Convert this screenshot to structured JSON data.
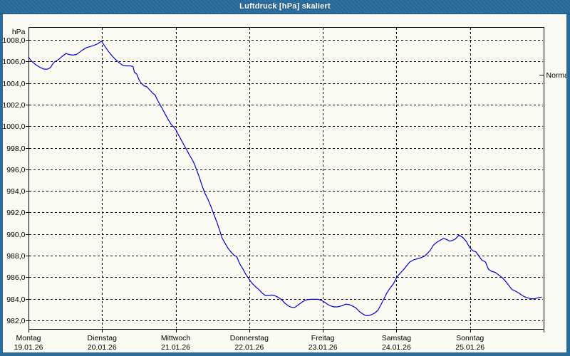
{
  "window": {
    "title": "Luftdruck [hPa] skaliert"
  },
  "colors": {
    "titlebar": "#2a6d9d",
    "window_border": "#2a6d9d",
    "plot_background": "#fbfbf3",
    "line": "#0000cc",
    "grid": "#000000",
    "text": "#000000"
  },
  "chart_data": {
    "type": "line",
    "title": "Luftdruck [hPa] skaliert",
    "y_unit_label": "hPa",
    "ylim": [
      981.2,
      1009.2
    ],
    "x_range": [
      0,
      7
    ],
    "grid": "dashed",
    "legend_position": "none",
    "yticks": {
      "values": [
        1008,
        1006,
        1004,
        1002,
        1000,
        998,
        996,
        994,
        992,
        990,
        988,
        986,
        984,
        982
      ],
      "labels": [
        "1008,0",
        "1006,0",
        "1004,0",
        "1002,0",
        "1000,0",
        "998,0",
        "996,0",
        "994,0",
        "992,0",
        "990,0",
        "988,0",
        "986,0",
        "984,0",
        "982,0"
      ]
    },
    "days": [
      {
        "name": "Montag",
        "date": "19.01.26"
      },
      {
        "name": "Dienstag",
        "date": "20.01.26"
      },
      {
        "name": "Mittwoch",
        "date": "21.01.26"
      },
      {
        "name": "Donnerstag",
        "date": "22.01.26"
      },
      {
        "name": "Freitag",
        "date": "23.01.26"
      },
      {
        "name": "Samstag",
        "date": "24.01.26"
      },
      {
        "name": "Sonntag",
        "date": "25.01.26"
      }
    ],
    "normal_marker": {
      "label": "Normal",
      "value": 1004.8
    },
    "series": [
      {
        "name": "Luftdruck",
        "color": "#0000cc",
        "points": [
          [
            0.0,
            1006.4
          ],
          [
            0.04,
            1006.05
          ],
          [
            0.1,
            1005.7
          ],
          [
            0.16,
            1005.45
          ],
          [
            0.21,
            1005.3
          ],
          [
            0.26,
            1005.3
          ],
          [
            0.3,
            1005.45
          ],
          [
            0.33,
            1005.8
          ],
          [
            0.36,
            1006.0
          ],
          [
            0.41,
            1006.2
          ],
          [
            0.46,
            1006.5
          ],
          [
            0.51,
            1006.75
          ],
          [
            0.55,
            1006.65
          ],
          [
            0.6,
            1006.6
          ],
          [
            0.65,
            1006.65
          ],
          [
            0.7,
            1006.9
          ],
          [
            0.74,
            1007.1
          ],
          [
            0.79,
            1007.3
          ],
          [
            0.84,
            1007.4
          ],
          [
            0.89,
            1007.5
          ],
          [
            0.94,
            1007.65
          ],
          [
            0.99,
            1007.9
          ],
          [
            1.04,
            1007.4
          ],
          [
            1.09,
            1006.9
          ],
          [
            1.14,
            1006.5
          ],
          [
            1.19,
            1006.15
          ],
          [
            1.24,
            1005.85
          ],
          [
            1.28,
            1005.65
          ],
          [
            1.33,
            1005.6
          ],
          [
            1.38,
            1005.6
          ],
          [
            1.42,
            1005.55
          ],
          [
            1.44,
            1005.0
          ],
          [
            1.47,
            1004.85
          ],
          [
            1.5,
            1004.35
          ],
          [
            1.53,
            1004.0
          ],
          [
            1.57,
            1003.75
          ],
          [
            1.61,
            1003.65
          ],
          [
            1.65,
            1003.35
          ],
          [
            1.69,
            1003.05
          ],
          [
            1.72,
            1002.9
          ],
          [
            1.75,
            1002.45
          ],
          [
            1.78,
            1002.1
          ],
          [
            1.82,
            1001.6
          ],
          [
            1.86,
            1001.1
          ],
          [
            1.9,
            1000.6
          ],
          [
            1.94,
            1000.15
          ],
          [
            1.97,
            999.95
          ],
          [
            2.0,
            999.7
          ],
          [
            2.03,
            999.3
          ],
          [
            2.07,
            998.8
          ],
          [
            2.11,
            998.3
          ],
          [
            2.15,
            997.8
          ],
          [
            2.19,
            997.3
          ],
          [
            2.23,
            996.85
          ],
          [
            2.26,
            996.4
          ],
          [
            2.29,
            995.85
          ],
          [
            2.32,
            995.3
          ],
          [
            2.36,
            994.45
          ],
          [
            2.4,
            993.75
          ],
          [
            2.44,
            993.2
          ],
          [
            2.48,
            992.55
          ],
          [
            2.52,
            991.8
          ],
          [
            2.56,
            991.1
          ],
          [
            2.6,
            990.3
          ],
          [
            2.63,
            989.65
          ],
          [
            2.67,
            989.15
          ],
          [
            2.71,
            988.7
          ],
          [
            2.75,
            988.35
          ],
          [
            2.79,
            988.05
          ],
          [
            2.83,
            987.9
          ],
          [
            2.87,
            987.25
          ],
          [
            2.91,
            986.8
          ],
          [
            2.95,
            986.3
          ],
          [
            2.99,
            985.9
          ],
          [
            3.03,
            985.5
          ],
          [
            3.08,
            985.15
          ],
          [
            3.13,
            984.85
          ],
          [
            3.18,
            984.5
          ],
          [
            3.22,
            984.3
          ],
          [
            3.27,
            984.3
          ],
          [
            3.3,
            984.35
          ],
          [
            3.34,
            984.3
          ],
          [
            3.39,
            984.15
          ],
          [
            3.44,
            983.9
          ],
          [
            3.49,
            983.55
          ],
          [
            3.54,
            983.3
          ],
          [
            3.58,
            983.2
          ],
          [
            3.62,
            983.2
          ],
          [
            3.67,
            983.45
          ],
          [
            3.72,
            983.7
          ],
          [
            3.77,
            983.9
          ],
          [
            3.83,
            983.95
          ],
          [
            3.89,
            983.95
          ],
          [
            3.94,
            983.95
          ],
          [
            3.98,
            983.85
          ],
          [
            4.02,
            983.7
          ],
          [
            4.06,
            983.5
          ],
          [
            4.1,
            983.35
          ],
          [
            4.15,
            983.25
          ],
          [
            4.2,
            983.25
          ],
          [
            4.26,
            983.35
          ],
          [
            4.31,
            983.5
          ],
          [
            4.36,
            983.45
          ],
          [
            4.41,
            983.3
          ],
          [
            4.45,
            983.15
          ],
          [
            4.49,
            982.85
          ],
          [
            4.54,
            982.6
          ],
          [
            4.58,
            982.45
          ],
          [
            4.63,
            982.45
          ],
          [
            4.67,
            982.55
          ],
          [
            4.71,
            982.7
          ],
          [
            4.75,
            982.95
          ],
          [
            4.79,
            983.45
          ],
          [
            4.83,
            984.0
          ],
          [
            4.87,
            984.55
          ],
          [
            4.91,
            984.95
          ],
          [
            4.96,
            985.4
          ],
          [
            5.0,
            985.95
          ],
          [
            5.04,
            986.3
          ],
          [
            5.09,
            986.65
          ],
          [
            5.13,
            987.0
          ],
          [
            5.18,
            987.4
          ],
          [
            5.23,
            987.6
          ],
          [
            5.28,
            987.7
          ],
          [
            5.33,
            987.8
          ],
          [
            5.38,
            987.95
          ],
          [
            5.42,
            988.2
          ],
          [
            5.46,
            988.5
          ],
          [
            5.5,
            988.95
          ],
          [
            5.55,
            989.25
          ],
          [
            5.6,
            989.45
          ],
          [
            5.64,
            989.6
          ],
          [
            5.68,
            989.5
          ],
          [
            5.72,
            989.35
          ],
          [
            5.76,
            989.4
          ],
          [
            5.8,
            989.55
          ],
          [
            5.85,
            989.9
          ],
          [
            5.9,
            989.7
          ],
          [
            5.95,
            989.3
          ],
          [
            6.0,
            988.7
          ],
          [
            6.04,
            988.45
          ],
          [
            6.08,
            988.35
          ],
          [
            6.12,
            987.95
          ],
          [
            6.16,
            987.6
          ],
          [
            6.21,
            987.4
          ],
          [
            6.25,
            986.75
          ],
          [
            6.29,
            986.55
          ],
          [
            6.34,
            986.45
          ],
          [
            6.38,
            986.25
          ],
          [
            6.43,
            986.0
          ],
          [
            6.48,
            985.65
          ],
          [
            6.53,
            985.2
          ],
          [
            6.57,
            984.85
          ],
          [
            6.62,
            984.7
          ],
          [
            6.67,
            984.5
          ],
          [
            6.72,
            984.25
          ],
          [
            6.77,
            984.1
          ],
          [
            6.83,
            984.0
          ],
          [
            6.88,
            984.0
          ],
          [
            6.93,
            984.1
          ],
          [
            6.97,
            984.15
          ]
        ]
      }
    ]
  }
}
